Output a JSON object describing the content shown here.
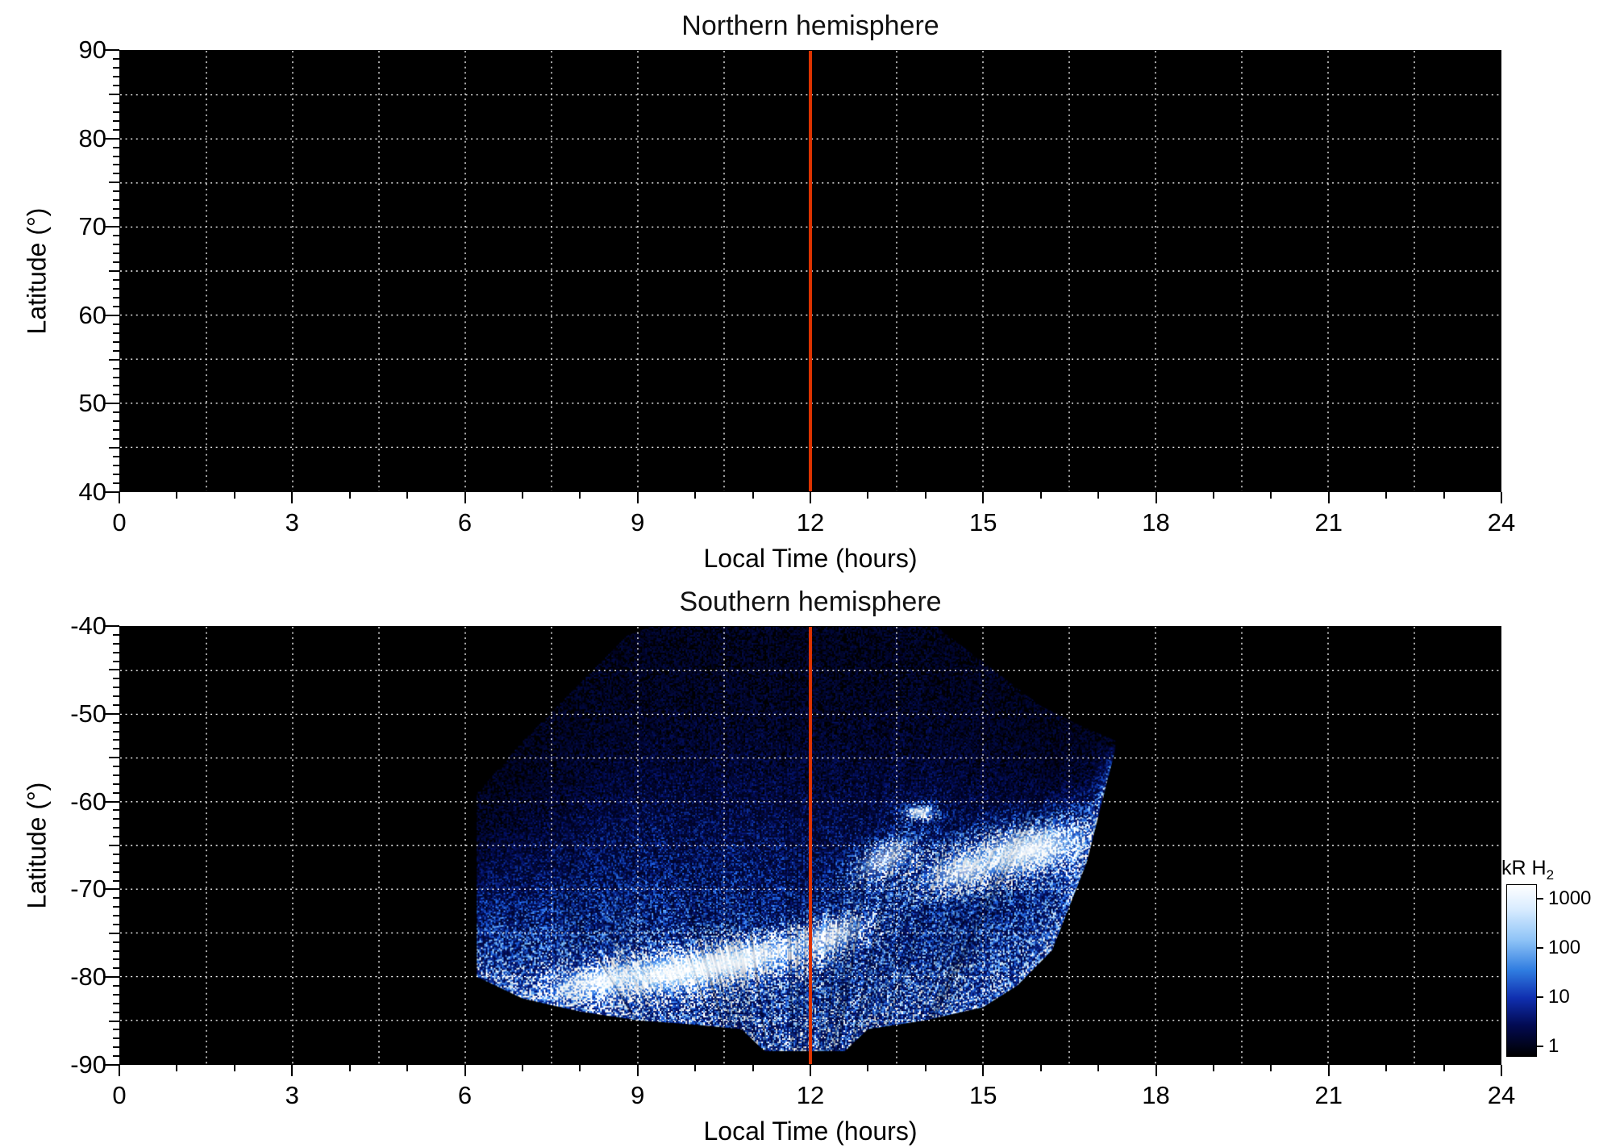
{
  "figure": {
    "page_background": "#ffffff",
    "panel_background": "#000000",
    "grid_color": "#ffffff",
    "noon_line_color": "#dd3300"
  },
  "colorbar": {
    "label": "kR H",
    "label_sub": "2",
    "ticks": [
      "1000",
      "100",
      "10",
      "1"
    ],
    "scale": "log",
    "top_color": "#ffffff",
    "bottom_color": "#000000"
  },
  "chart_data": [
    {
      "type": "heatmap",
      "title": "Northern hemisphere",
      "xlabel": "Local Time (hours)",
      "ylabel": "Latitude (°)",
      "xlim": [
        0,
        24
      ],
      "ylim": [
        40,
        90
      ],
      "x_ticks": [
        0,
        3,
        6,
        9,
        12,
        15,
        18,
        21,
        24
      ],
      "y_ticks": [
        40,
        50,
        60,
        70,
        80,
        90
      ],
      "grid": true,
      "grid_style": "dotted white, x every 1.5 h, y every 5 deg",
      "annotations": [
        {
          "type": "vline",
          "x": 12,
          "color": "#dd3300"
        }
      ],
      "coverage": "no emission observed; panel entirely black (below colorbar minimum)"
    },
    {
      "type": "heatmap",
      "title": "Southern hemisphere",
      "xlabel": "Local Time (hours)",
      "ylabel": "Latitude (°)",
      "xlim": [
        0,
        24
      ],
      "ylim": [
        -90,
        -40
      ],
      "x_ticks": [
        0,
        3,
        6,
        9,
        12,
        15,
        18,
        21,
        24
      ],
      "y_ticks": [
        -90,
        -80,
        -70,
        -60,
        -50,
        -40
      ],
      "grid": true,
      "grid_style": "dotted white, x every 1.5 h, y every 5 deg",
      "annotations": [
        {
          "type": "vline",
          "x": 12,
          "color": "#dd3300"
        }
      ],
      "colorbar": {
        "label": "kR H2",
        "scale": "log",
        "range": [
          1,
          1000
        ]
      },
      "emission": {
        "units": "kR H2",
        "lt_extent": [
          6.2,
          17.3
        ],
        "lat_extent": [
          -88.5,
          -40
        ],
        "region_upper": [
          [
            6.2,
            -59
          ],
          [
            6.6,
            -56
          ],
          [
            7.0,
            -53
          ],
          [
            7.6,
            -49
          ],
          [
            8.2,
            -45
          ],
          [
            8.8,
            -41
          ],
          [
            9.2,
            -40
          ],
          [
            14.2,
            -40
          ],
          [
            14.8,
            -43
          ],
          [
            15.4,
            -46
          ],
          [
            16.0,
            -49
          ],
          [
            16.6,
            -51
          ],
          [
            17.3,
            -53
          ]
        ],
        "region_lower": [
          [
            6.2,
            -80
          ],
          [
            7.0,
            -82.5
          ],
          [
            8.0,
            -84
          ],
          [
            9.0,
            -85
          ],
          [
            10.0,
            -85.5
          ],
          [
            10.8,
            -86
          ],
          [
            11.2,
            -88.5
          ],
          [
            12.6,
            -88.5
          ],
          [
            13.0,
            -86
          ],
          [
            14.0,
            -85
          ],
          [
            15.0,
            -83.5
          ],
          [
            15.6,
            -81
          ],
          [
            16.2,
            -77
          ],
          [
            16.8,
            -67
          ],
          [
            17.3,
            -54
          ]
        ],
        "bright_spots": [
          {
            "lt": 9.6,
            "lat": -79.5,
            "rx": 1.5,
            "ry": 2.6,
            "rot": -8,
            "intensity": 1.0
          },
          {
            "lt": 8.3,
            "lat": -80.5,
            "rx": 1.0,
            "ry": 1.9,
            "rot": -12,
            "intensity": 0.85
          },
          {
            "lt": 10.5,
            "lat": -78.5,
            "rx": 1.0,
            "ry": 2.0,
            "rot": -10,
            "intensity": 0.75
          },
          {
            "lt": 11.1,
            "lat": -77.5,
            "rx": 1.1,
            "ry": 2.1,
            "rot": -12,
            "intensity": 0.7
          },
          {
            "lt": 12.3,
            "lat": -75.5,
            "rx": 0.9,
            "ry": 2.4,
            "rot": -22,
            "intensity": 0.65
          },
          {
            "lt": 13.3,
            "lat": -66.5,
            "rx": 0.7,
            "ry": 2.3,
            "rot": -28,
            "intensity": 0.55
          },
          {
            "lt": 15.8,
            "lat": -65.5,
            "rx": 1.3,
            "ry": 3.1,
            "rot": -12,
            "intensity": 1.0
          },
          {
            "lt": 14.7,
            "lat": -67.8,
            "rx": 0.9,
            "ry": 2.4,
            "rot": -15,
            "intensity": 0.7
          },
          {
            "lt": 13.9,
            "lat": -61.2,
            "rx": 0.3,
            "ry": 0.9,
            "rot": 0,
            "intensity": 0.9
          }
        ],
        "description": "Fan-shaped auroral UV emission between ~06:00 and ~17:20 LT; diffuse speckled blue at mid latitudes, bright white arc near -78/-82 deg around 08-12 LT and bright white patch near -65 deg around 15-17 LT"
      }
    }
  ]
}
